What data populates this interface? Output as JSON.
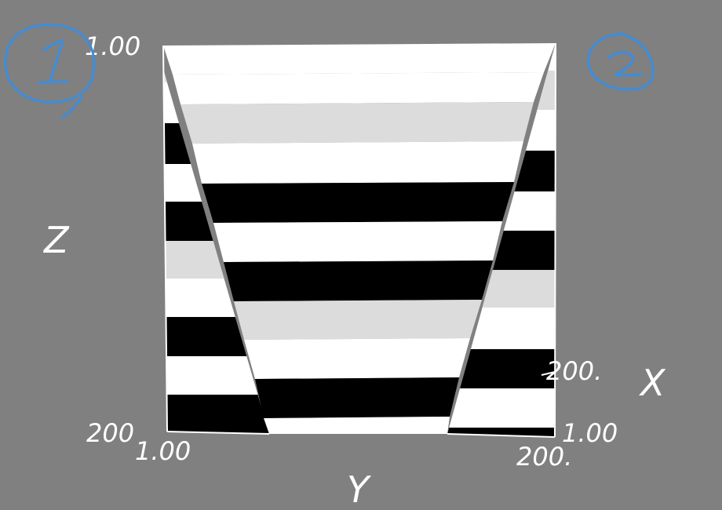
{
  "colors": {
    "background": "#808080",
    "black_band": "#000000",
    "white_band": "#ffffff",
    "gray_band": "#dcdcdc",
    "annotation": "#3a8ee0",
    "label": "#ffffff"
  },
  "axes": {
    "z": "Z",
    "y": "Y",
    "x": "X"
  },
  "ticks": {
    "z_top": "1.00",
    "z_bottom": "200",
    "y_left": "1.00",
    "y_right": "200.",
    "x_near": "1.00",
    "x_far": "200."
  },
  "annotations": {
    "left_circle": "1",
    "right_circle": "2"
  }
}
